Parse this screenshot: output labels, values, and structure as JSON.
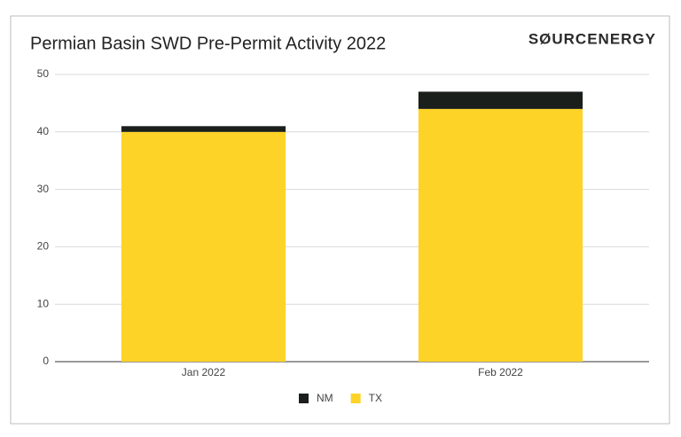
{
  "chart_data": {
    "type": "stacked_bar",
    "title": "Permian Basin SWD Pre-Permit Activity 2022",
    "logo": "SØURCENERGY",
    "categories": [
      "Jan 2022",
      "Feb 2022"
    ],
    "series": [
      {
        "name": "NM",
        "color": "#1b1f1b",
        "values": [
          1,
          3
        ]
      },
      {
        "name": "TX",
        "color": "#fdd327",
        "values": [
          40,
          44
        ]
      }
    ],
    "ylim": [
      0,
      50
    ],
    "yticks": [
      0,
      10,
      20,
      30,
      40,
      50
    ],
    "grid": true,
    "legend": "bottom"
  }
}
